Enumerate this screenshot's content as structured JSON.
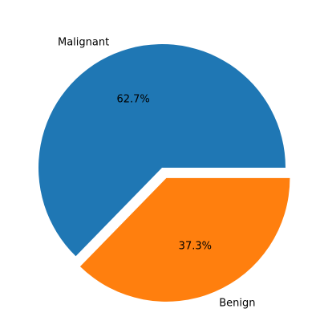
{
  "chart_data": {
    "type": "pie",
    "slices": [
      {
        "label": "Malignant",
        "value": 62.7,
        "pct_label": "62.7%",
        "color": "#1f77b4",
        "exploded": false
      },
      {
        "label": "Benign",
        "value": 37.3,
        "pct_label": "37.3%",
        "color": "#ff7f0e",
        "exploded": true
      }
    ],
    "start_angle_deg": 0,
    "direction": "counterclockwise"
  }
}
